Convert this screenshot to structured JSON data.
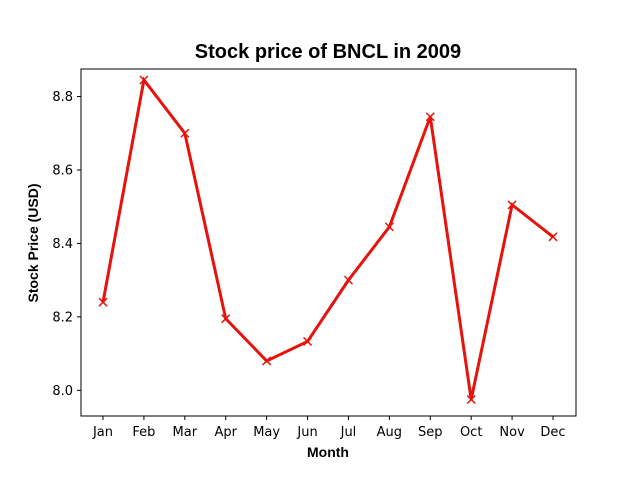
{
  "chart_data": {
    "type": "line",
    "title": "Stock price of BNCL in 2009",
    "xlabel": "Month",
    "ylabel": "Stock Price (USD)",
    "categories": [
      "Jan",
      "Feb",
      "Mar",
      "Apr",
      "May",
      "Jun",
      "Jul",
      "Aug",
      "Sep",
      "Oct",
      "Nov",
      "Dec"
    ],
    "series": [
      {
        "values": [
          8.24,
          8.845,
          8.7,
          8.195,
          8.08,
          8.133,
          8.3,
          8.445,
          8.745,
          7.975,
          8.505,
          8.418
        ],
        "color": "#e8120c",
        "marker": "x"
      }
    ],
    "ylim": [
      7.93,
      8.875
    ],
    "yticks": [
      8.0,
      8.2,
      8.4,
      8.6,
      8.8
    ],
    "ytick_labels": [
      "8.0",
      "8.2",
      "8.4",
      "8.6",
      "8.8"
    ],
    "grid": false,
    "legend": false
  }
}
